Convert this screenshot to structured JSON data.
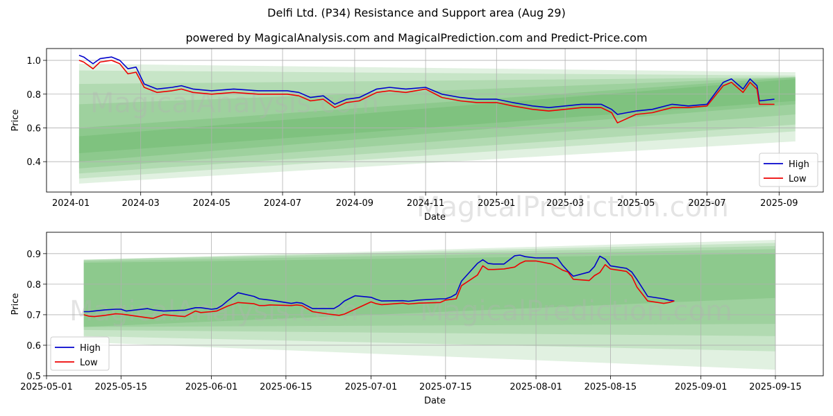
{
  "title": "Delfi Ltd. (P34) Resistance and Support area (Aug 29)",
  "subtitle": "powered by MagicalAnalysis.com and MagicalPrediction.com and Predict-Price.com",
  "watermarks": [
    "MagicalAnalysis.com",
    "MagicalPrediction.com"
  ],
  "colors": {
    "high": "#0000cc",
    "low": "#ee0000",
    "band": "#2e9a2e"
  },
  "chart_data": [
    {
      "type": "line",
      "xlabel": "Date",
      "ylabel": "Price",
      "xlim": [
        "2023-12-11",
        "2025-10-09"
      ],
      "ylim": [
        0.22,
        1.07
      ],
      "x_ticks": [
        "2024-01",
        "2024-03",
        "2024-05",
        "2024-07",
        "2024-09",
        "2024-11",
        "2025-01",
        "2025-03",
        "2025-05",
        "2025-07",
        "2025-09"
      ],
      "y_ticks": [
        "0.4",
        "0.6",
        "0.8",
        "1.0"
      ],
      "legend": {
        "position": "lower-right",
        "entries": [
          "High",
          "Low"
        ]
      },
      "grid": true,
      "bands": [
        {
          "x": [
            "2024-01-08",
            "2025-09-15"
          ],
          "upper": [
            0.98,
            0.93
          ],
          "lower": [
            0.27,
            0.52
          ]
        },
        {
          "x": [
            "2024-01-08",
            "2025-09-15"
          ],
          "upper": [
            0.94,
            0.91
          ],
          "lower": [
            0.3,
            0.58
          ]
        },
        {
          "x": [
            "2024-01-08",
            "2025-09-15"
          ],
          "upper": [
            0.86,
            0.9
          ],
          "lower": [
            0.33,
            0.62
          ]
        },
        {
          "x": [
            "2024-01-08",
            "2025-09-15"
          ],
          "upper": [
            0.74,
            0.9
          ],
          "lower": [
            0.36,
            0.68
          ]
        },
        {
          "x": [
            "2024-01-08",
            "2025-09-15"
          ],
          "upper": [
            0.6,
            0.9
          ],
          "lower": [
            0.4,
            0.74
          ]
        },
        {
          "x": [
            "2024-01-08",
            "2025-09-15"
          ],
          "upper": [
            0.55,
            0.89
          ],
          "lower": [
            0.45,
            0.76
          ]
        }
      ],
      "series": [
        {
          "name": "High",
          "x": [
            "2024-01-08",
            "2024-01-12",
            "2024-01-20",
            "2024-01-26",
            "2024-02-05",
            "2024-02-12",
            "2024-02-19",
            "2024-02-26",
            "2024-03-04",
            "2024-03-15",
            "2024-03-28",
            "2024-04-05",
            "2024-04-15",
            "2024-05-01",
            "2024-05-20",
            "2024-06-10",
            "2024-06-25",
            "2024-07-05",
            "2024-07-15",
            "2024-07-25",
            "2024-08-05",
            "2024-08-15",
            "2024-08-25",
            "2024-09-05",
            "2024-09-20",
            "2024-10-01",
            "2024-10-15",
            "2024-11-01",
            "2024-11-15",
            "2024-12-01",
            "2024-12-15",
            "2025-01-01",
            "2025-01-15",
            "2025-02-01",
            "2025-02-15",
            "2025-03-01",
            "2025-03-15",
            "2025-04-01",
            "2025-04-10",
            "2025-04-15",
            "2025-05-01",
            "2025-05-15",
            "2025-06-01",
            "2025-06-15",
            "2025-07-01",
            "2025-07-15",
            "2025-07-22",
            "2025-08-01",
            "2025-08-07",
            "2025-08-13",
            "2025-08-15",
            "2025-08-28"
          ],
          "values": [
            1.03,
            1.02,
            0.98,
            1.01,
            1.02,
            1.0,
            0.95,
            0.96,
            0.86,
            0.83,
            0.84,
            0.85,
            0.83,
            0.82,
            0.83,
            0.82,
            0.82,
            0.82,
            0.81,
            0.78,
            0.79,
            0.74,
            0.77,
            0.78,
            0.83,
            0.84,
            0.83,
            0.84,
            0.8,
            0.78,
            0.77,
            0.77,
            0.75,
            0.73,
            0.72,
            0.73,
            0.74,
            0.74,
            0.71,
            0.68,
            0.7,
            0.71,
            0.74,
            0.73,
            0.74,
            0.87,
            0.89,
            0.83,
            0.89,
            0.85,
            0.76,
            0.77
          ]
        },
        {
          "name": "Low",
          "x": [
            "2024-01-08",
            "2024-01-12",
            "2024-01-20",
            "2024-01-26",
            "2024-02-05",
            "2024-02-12",
            "2024-02-19",
            "2024-02-26",
            "2024-03-04",
            "2024-03-15",
            "2024-03-28",
            "2024-04-05",
            "2024-04-15",
            "2024-05-01",
            "2024-05-20",
            "2024-06-10",
            "2024-06-25",
            "2024-07-05",
            "2024-07-15",
            "2024-07-25",
            "2024-08-05",
            "2024-08-15",
            "2024-08-25",
            "2024-09-05",
            "2024-09-20",
            "2024-10-01",
            "2024-10-15",
            "2024-11-01",
            "2024-11-15",
            "2024-12-01",
            "2024-12-15",
            "2025-01-01",
            "2025-01-15",
            "2025-02-01",
            "2025-02-15",
            "2025-03-01",
            "2025-03-15",
            "2025-04-01",
            "2025-04-10",
            "2025-04-15",
            "2025-05-01",
            "2025-05-15",
            "2025-06-01",
            "2025-06-15",
            "2025-07-01",
            "2025-07-15",
            "2025-07-22",
            "2025-08-01",
            "2025-08-07",
            "2025-08-13",
            "2025-08-15",
            "2025-08-28"
          ],
          "values": [
            1.0,
            0.99,
            0.95,
            0.99,
            1.0,
            0.98,
            0.92,
            0.93,
            0.84,
            0.81,
            0.82,
            0.83,
            0.81,
            0.8,
            0.81,
            0.8,
            0.8,
            0.8,
            0.79,
            0.76,
            0.77,
            0.72,
            0.75,
            0.76,
            0.81,
            0.82,
            0.81,
            0.83,
            0.78,
            0.76,
            0.75,
            0.75,
            0.73,
            0.71,
            0.7,
            0.71,
            0.72,
            0.72,
            0.69,
            0.63,
            0.68,
            0.69,
            0.72,
            0.72,
            0.73,
            0.85,
            0.87,
            0.81,
            0.87,
            0.83,
            0.74,
            0.74
          ]
        }
      ]
    },
    {
      "type": "line",
      "xlabel": "Date",
      "ylabel": "Price",
      "xlim": [
        "2025-05-01",
        "2025-09-24"
      ],
      "ylim": [
        0.5,
        0.97
      ],
      "x_ticks": [
        "2025-05-01",
        "2025-05-15",
        "2025-06-01",
        "2025-06-15",
        "2025-07-01",
        "2025-07-15",
        "2025-08-01",
        "2025-08-15",
        "2025-09-01",
        "2025-09-15"
      ],
      "y_ticks": [
        "0.5",
        "0.6",
        "0.7",
        "0.8",
        "0.9"
      ],
      "legend": {
        "position": "lower-left",
        "entries": [
          "High",
          "Low"
        ]
      },
      "grid": true,
      "bands": [
        {
          "x": [
            "2025-05-08",
            "2025-09-15"
          ],
          "upper": [
            0.88,
            0.945
          ],
          "lower": [
            0.61,
            0.52
          ]
        },
        {
          "x": [
            "2025-05-08",
            "2025-09-15"
          ],
          "upper": [
            0.88,
            0.935
          ],
          "lower": [
            0.63,
            0.58
          ]
        },
        {
          "x": [
            "2025-05-08",
            "2025-09-15"
          ],
          "upper": [
            0.88,
            0.925
          ],
          "lower": [
            0.65,
            0.63
          ]
        },
        {
          "x": [
            "2025-05-08",
            "2025-09-15"
          ],
          "upper": [
            0.875,
            0.915
          ],
          "lower": [
            0.66,
            0.67
          ]
        },
        {
          "x": [
            "2025-05-08",
            "2025-09-15"
          ],
          "upper": [
            0.87,
            0.9
          ],
          "lower": [
            0.66,
            0.755
          ]
        }
      ],
      "series": [
        {
          "name": "High",
          "x": [
            "2025-05-08",
            "2025-05-09",
            "2025-05-10",
            "2025-05-12",
            "2025-05-14",
            "2025-05-15",
            "2025-05-16",
            "2025-05-20",
            "2025-05-21",
            "2025-05-23",
            "2025-05-27",
            "2025-05-29",
            "2025-05-30",
            "2025-06-01",
            "2025-06-02",
            "2025-06-03",
            "2025-06-04",
            "2025-06-06",
            "2025-06-09",
            "2025-06-10",
            "2025-06-11",
            "2025-06-12",
            "2025-06-16",
            "2025-06-17",
            "2025-06-18",
            "2025-06-20",
            "2025-06-23",
            "2025-06-24",
            "2025-06-25",
            "2025-06-26",
            "2025-06-28",
            "2025-07-01",
            "2025-07-02",
            "2025-07-03",
            "2025-07-07",
            "2025-07-08",
            "2025-07-10",
            "2025-07-14",
            "2025-07-15",
            "2025-07-16",
            "2025-07-17",
            "2025-07-18",
            "2025-07-21",
            "2025-07-22",
            "2025-07-23",
            "2025-07-24",
            "2025-07-26",
            "2025-07-28",
            "2025-07-29",
            "2025-07-30",
            "2025-08-01",
            "2025-08-04",
            "2025-08-05",
            "2025-08-06",
            "2025-08-07",
            "2025-08-08",
            "2025-08-11",
            "2025-08-12",
            "2025-08-13",
            "2025-08-14",
            "2025-08-15",
            "2025-08-18",
            "2025-08-19",
            "2025-08-20",
            "2025-08-22",
            "2025-08-25",
            "2025-08-26",
            "2025-08-27"
          ],
          "values": [
            0.71,
            0.71,
            0.712,
            0.716,
            0.718,
            0.718,
            0.712,
            0.72,
            0.716,
            0.712,
            0.715,
            0.723,
            0.723,
            0.718,
            0.72,
            0.73,
            0.745,
            0.772,
            0.76,
            0.752,
            0.75,
            0.748,
            0.737,
            0.74,
            0.738,
            0.72,
            0.72,
            0.72,
            0.73,
            0.745,
            0.762,
            0.757,
            0.75,
            0.745,
            0.746,
            0.744,
            0.748,
            0.752,
            0.752,
            0.758,
            0.768,
            0.81,
            0.868,
            0.88,
            0.868,
            0.866,
            0.866,
            0.893,
            0.895,
            0.89,
            0.886,
            0.886,
            0.886,
            0.862,
            0.843,
            0.826,
            0.84,
            0.858,
            0.892,
            0.882,
            0.86,
            0.852,
            0.84,
            0.815,
            0.76,
            0.752,
            0.748,
            0.745
          ]
        },
        {
          "name": "Low",
          "x": [
            "2025-05-08",
            "2025-05-09",
            "2025-05-10",
            "2025-05-12",
            "2025-05-14",
            "2025-05-15",
            "2025-05-16",
            "2025-05-20",
            "2025-05-21",
            "2025-05-23",
            "2025-05-27",
            "2025-05-29",
            "2025-05-30",
            "2025-06-01",
            "2025-06-02",
            "2025-06-03",
            "2025-06-04",
            "2025-06-06",
            "2025-06-09",
            "2025-06-10",
            "2025-06-11",
            "2025-06-12",
            "2025-06-16",
            "2025-06-17",
            "2025-06-18",
            "2025-06-20",
            "2025-06-23",
            "2025-06-24",
            "2025-06-25",
            "2025-06-26",
            "2025-06-28",
            "2025-07-01",
            "2025-07-02",
            "2025-07-03",
            "2025-07-07",
            "2025-07-08",
            "2025-07-10",
            "2025-07-14",
            "2025-07-15",
            "2025-07-16",
            "2025-07-17",
            "2025-07-18",
            "2025-07-21",
            "2025-07-22",
            "2025-07-23",
            "2025-07-24",
            "2025-07-26",
            "2025-07-28",
            "2025-07-29",
            "2025-07-30",
            "2025-08-01",
            "2025-08-04",
            "2025-08-05",
            "2025-08-06",
            "2025-08-07",
            "2025-08-08",
            "2025-08-11",
            "2025-08-12",
            "2025-08-13",
            "2025-08-14",
            "2025-08-15",
            "2025-08-18",
            "2025-08-19",
            "2025-08-20",
            "2025-08-22",
            "2025-08-25",
            "2025-08-26",
            "2025-08-27"
          ],
          "values": [
            0.7,
            0.695,
            0.694,
            0.698,
            0.703,
            0.702,
            0.7,
            0.69,
            0.688,
            0.7,
            0.694,
            0.712,
            0.707,
            0.71,
            0.712,
            0.72,
            0.728,
            0.74,
            0.736,
            0.73,
            0.73,
            0.732,
            0.73,
            0.732,
            0.73,
            0.71,
            0.702,
            0.7,
            0.698,
            0.702,
            0.718,
            0.742,
            0.736,
            0.733,
            0.738,
            0.735,
            0.738,
            0.74,
            0.748,
            0.75,
            0.752,
            0.795,
            0.83,
            0.86,
            0.848,
            0.848,
            0.85,
            0.856,
            0.868,
            0.876,
            0.876,
            0.866,
            0.856,
            0.846,
            0.84,
            0.816,
            0.812,
            0.828,
            0.838,
            0.864,
            0.85,
            0.842,
            0.826,
            0.79,
            0.745,
            0.737,
            0.74,
            0.745
          ]
        }
      ]
    }
  ]
}
